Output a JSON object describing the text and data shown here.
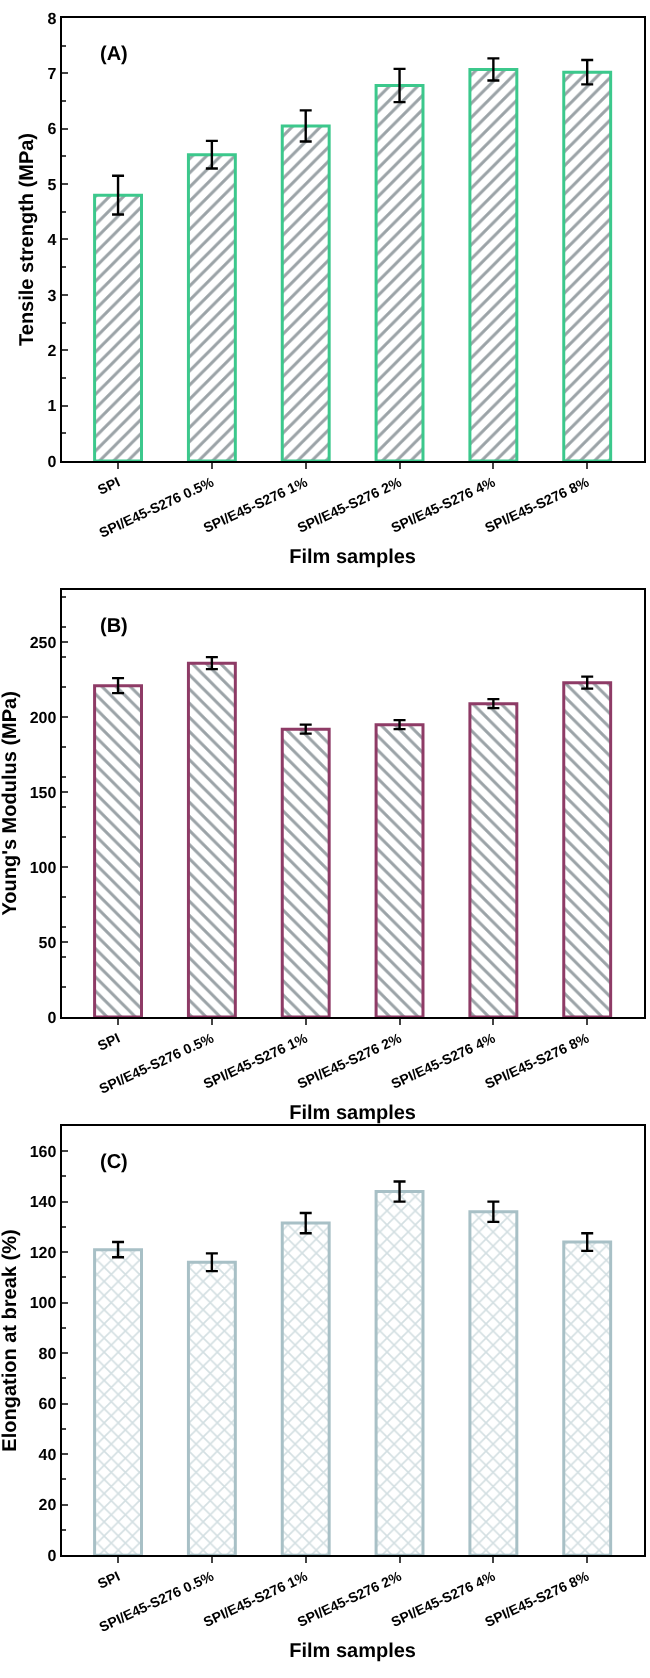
{
  "chart_data": [
    {
      "type": "bar",
      "title": "(A)",
      "xlabel": "Film samples",
      "ylabel": "Tensile strength (MPa)",
      "categories": [
        "SPI",
        "SPI/E45-S276 0.5%",
        "SPI/E45-S276 1%",
        "SPI/E45-S276 2%",
        "SPI/E45-S276 4%",
        "SPI/E45-S276 8%"
      ],
      "series": [
        {
          "color": "#3cc88c",
          "values": [
            4.8,
            5.53,
            6.05,
            6.78,
            7.07,
            7.02
          ],
          "errors": [
            0.35,
            0.25,
            0.28,
            0.3,
            0.2,
            0.22
          ]
        }
      ],
      "ylim": [
        0,
        8
      ],
      "yticks": [
        0,
        1,
        2,
        3,
        4,
        5,
        6,
        7,
        8
      ]
    },
    {
      "type": "bar",
      "title": "(B)",
      "xlabel": "Film samples",
      "ylabel": "Young's Modulus (MPa)",
      "categories": [
        "SPI",
        "SPI/E45-S276 0.5%",
        "SPI/E45-S276 1%",
        "SPI/E45-S276 2%",
        "SPI/E45-S276 4%",
        "SPI/E45-S276 8%"
      ],
      "series": [
        {
          "color": "#8e3b66",
          "values": [
            221,
            236,
            192,
            195,
            209,
            223
          ],
          "errors": [
            5,
            4,
            3,
            3,
            3,
            4
          ]
        }
      ],
      "ylim": [
        0,
        285
      ],
      "yticks": [
        0,
        50,
        100,
        150,
        200,
        250
      ]
    },
    {
      "type": "bar",
      "title": "(C)",
      "xlabel": "Film samples",
      "ylabel": "Elongation at break (%)",
      "categories": [
        "SPI",
        "SPI/E45-S276 0.5%",
        "SPI/E45-S276 1%",
        "SPI/E45-S276 2%",
        "SPI/E45-S276 4%",
        "SPI/E45-S276 8%"
      ],
      "series": [
        {
          "color": "#a8c0c6",
          "values": [
            121,
            116,
            131.5,
            144,
            136,
            124
          ],
          "errors": [
            3,
            3.5,
            4,
            4,
            4,
            3.5
          ]
        }
      ],
      "ylim": [
        0,
        170
      ],
      "yticks": [
        0,
        20,
        40,
        60,
        80,
        100,
        120,
        140,
        160
      ]
    }
  ]
}
